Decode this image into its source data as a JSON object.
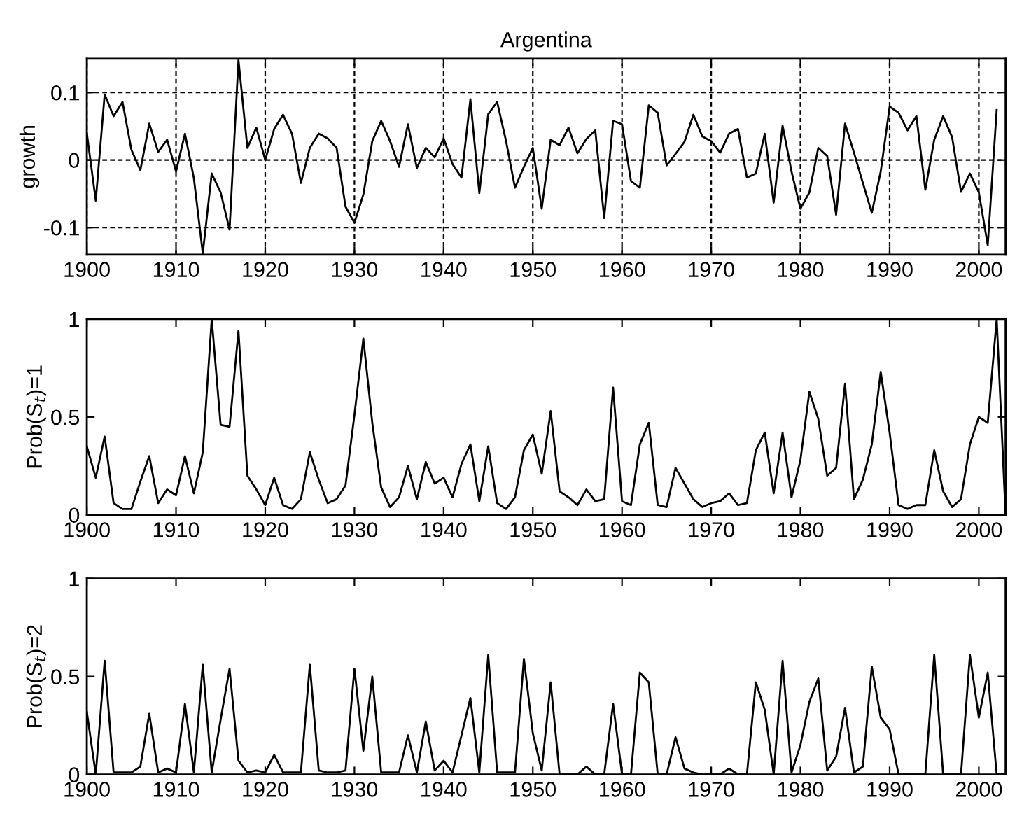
{
  "chart_data": [
    {
      "type": "line",
      "title": "Argentina",
      "ylabel": "growth",
      "xlim": [
        1900,
        2003
      ],
      "ylim": [
        -0.14,
        0.15
      ],
      "xticks": [
        1900,
        1910,
        1920,
        1930,
        1940,
        1950,
        1960,
        1970,
        1980,
        1990,
        2000
      ],
      "yticks": [
        {
          "value": -0.1,
          "label": "-0.1"
        },
        0,
        0.1
      ],
      "grid": true,
      "line_style": "solid",
      "marker": "none",
      "series": [
        {
          "color": "#000000",
          "x": [
            1900,
            1901,
            1902,
            1903,
            1904,
            1905,
            1906,
            1907,
            1908,
            1909,
            1910,
            1911,
            1912,
            1913,
            1914,
            1915,
            1916,
            1917,
            1918,
            1919,
            1920,
            1921,
            1922,
            1923,
            1924,
            1925,
            1926,
            1927,
            1928,
            1929,
            1930,
            1931,
            1932,
            1933,
            1934,
            1935,
            1936,
            1937,
            1938,
            1939,
            1940,
            1941,
            1942,
            1943,
            1944,
            1945,
            1946,
            1947,
            1948,
            1949,
            1950,
            1951,
            1952,
            1953,
            1954,
            1955,
            1956,
            1957,
            1958,
            1959,
            1960,
            1961,
            1962,
            1963,
            1964,
            1965,
            1966,
            1967,
            1968,
            1969,
            1970,
            1971,
            1972,
            1973,
            1974,
            1975,
            1976,
            1977,
            1978,
            1979,
            1980,
            1981,
            1982,
            1983,
            1984,
            1985,
            1986,
            1987,
            1988,
            1989,
            1990,
            1991,
            1992,
            1993,
            1994,
            1995,
            1996,
            1997,
            1998,
            1999,
            2000,
            2001,
            2002
          ],
          "values": [
            0.04,
            -0.06,
            0.097,
            0.065,
            0.086,
            0.015,
            -0.015,
            0.054,
            0.012,
            0.03,
            -0.017,
            0.039,
            -0.027,
            -0.138,
            -0.02,
            -0.048,
            -0.103,
            0.148,
            0.018,
            0.048,
            0.0,
            0.046,
            0.067,
            0.039,
            -0.034,
            0.018,
            0.039,
            0.032,
            0.018,
            -0.069,
            -0.093,
            -0.051,
            0.028,
            0.058,
            0.028,
            -0.01,
            0.053,
            -0.012,
            0.018,
            0.004,
            0.032,
            -0.006,
            -0.026,
            0.09,
            -0.049,
            0.068,
            0.086,
            0.028,
            -0.041,
            -0.01,
            0.018,
            -0.072,
            0.03,
            0.022,
            0.048,
            0.01,
            0.031,
            0.044,
            -0.086,
            0.058,
            0.053,
            -0.031,
            -0.041,
            0.081,
            0.07,
            -0.008,
            0.009,
            0.027,
            0.067,
            0.035,
            0.028,
            0.011,
            0.039,
            0.046,
            -0.026,
            -0.02,
            0.039,
            -0.063,
            0.051,
            -0.017,
            -0.072,
            -0.048,
            0.018,
            0.006,
            -0.081,
            0.054,
            0.011,
            -0.034,
            -0.078,
            -0.017,
            0.079,
            0.07,
            0.044,
            0.065,
            -0.044,
            0.03,
            0.065,
            0.034,
            -0.047,
            -0.02,
            -0.048,
            -0.126,
            0.074
          ]
        }
      ]
    },
    {
      "type": "line",
      "ylabel": "Prob(S$_{t}$)=1",
      "xlim": [
        1900,
        2003
      ],
      "ylim": [
        0,
        1
      ],
      "xticks": [
        1900,
        1910,
        1920,
        1930,
        1940,
        1950,
        1960,
        1970,
        1980,
        1990,
        2000
      ],
      "yticks": [
        0,
        0.5,
        1
      ],
      "grid": false,
      "line_style": "solid",
      "marker": "none",
      "series": [
        {
          "color": "#000000",
          "x": [
            1900,
            1901,
            1902,
            1903,
            1904,
            1905,
            1906,
            1907,
            1908,
            1909,
            1910,
            1911,
            1912,
            1913,
            1914,
            1915,
            1916,
            1917,
            1918,
            1919,
            1920,
            1921,
            1922,
            1923,
            1924,
            1925,
            1926,
            1927,
            1928,
            1929,
            1930,
            1931,
            1932,
            1933,
            1934,
            1935,
            1936,
            1937,
            1938,
            1939,
            1940,
            1941,
            1942,
            1943,
            1944,
            1945,
            1946,
            1947,
            1948,
            1949,
            1950,
            1951,
            1952,
            1953,
            1954,
            1955,
            1956,
            1957,
            1958,
            1959,
            1960,
            1961,
            1962,
            1963,
            1964,
            1965,
            1966,
            1967,
            1968,
            1969,
            1970,
            1971,
            1972,
            1973,
            1974,
            1975,
            1976,
            1977,
            1978,
            1979,
            1980,
            1981,
            1982,
            1983,
            1984,
            1985,
            1986,
            1987,
            1988,
            1989,
            1990,
            1991,
            1992,
            1993,
            1994,
            1995,
            1996,
            1997,
            1998,
            1999,
            2000,
            2001,
            2002,
            2003
          ],
          "values": [
            0.35,
            0.19,
            0.4,
            0.06,
            0.03,
            0.03,
            0.17,
            0.3,
            0.06,
            0.13,
            0.1,
            0.3,
            0.11,
            0.32,
            1.0,
            0.46,
            0.45,
            0.94,
            0.2,
            0.13,
            0.05,
            0.19,
            0.05,
            0.03,
            0.08,
            0.32,
            0.18,
            0.06,
            0.08,
            0.15,
            0.51,
            0.9,
            0.47,
            0.14,
            0.04,
            0.09,
            0.25,
            0.08,
            0.27,
            0.16,
            0.19,
            0.09,
            0.26,
            0.36,
            0.07,
            0.35,
            0.06,
            0.03,
            0.09,
            0.33,
            0.41,
            0.21,
            0.53,
            0.12,
            0.09,
            0.05,
            0.13,
            0.07,
            0.08,
            0.65,
            0.07,
            0.05,
            0.36,
            0.47,
            0.05,
            0.04,
            0.24,
            0.16,
            0.08,
            0.04,
            0.06,
            0.07,
            0.11,
            0.05,
            0.06,
            0.33,
            0.42,
            0.11,
            0.42,
            0.09,
            0.28,
            0.63,
            0.49,
            0.2,
            0.24,
            0.67,
            0.08,
            0.18,
            0.36,
            0.73,
            0.42,
            0.05,
            0.03,
            0.05,
            0.05,
            0.33,
            0.12,
            0.04,
            0.08,
            0.36,
            0.5,
            0.47,
            1.0,
            0.0
          ]
        }
      ]
    },
    {
      "type": "line",
      "ylabel": "Prob(S$_{t}$)=2",
      "xlim": [
        1900,
        2003
      ],
      "ylim": [
        0,
        1
      ],
      "xticks": [
        1900,
        1910,
        1920,
        1930,
        1940,
        1950,
        1960,
        1970,
        1980,
        1990,
        2000
      ],
      "yticks": [
        0,
        0.5,
        1
      ],
      "grid": false,
      "line_style": "solid",
      "marker": "none",
      "series": [
        {
          "color": "#000000",
          "x": [
            1900,
            1901,
            1902,
            1903,
            1904,
            1905,
            1906,
            1907,
            1908,
            1909,
            1910,
            1911,
            1912,
            1913,
            1914,
            1915,
            1916,
            1917,
            1918,
            1919,
            1920,
            1921,
            1922,
            1923,
            1924,
            1925,
            1926,
            1927,
            1928,
            1929,
            1930,
            1931,
            1932,
            1933,
            1934,
            1935,
            1936,
            1937,
            1938,
            1939,
            1940,
            1941,
            1942,
            1943,
            1944,
            1945,
            1946,
            1947,
            1948,
            1949,
            1950,
            1951,
            1952,
            1953,
            1954,
            1955,
            1956,
            1957,
            1958,
            1959,
            1960,
            1961,
            1962,
            1963,
            1964,
            1965,
            1966,
            1967,
            1968,
            1969,
            1970,
            1971,
            1972,
            1973,
            1974,
            1975,
            1976,
            1977,
            1978,
            1979,
            1980,
            1981,
            1982,
            1983,
            1984,
            1985,
            1986,
            1987,
            1988,
            1989,
            1990,
            1991,
            1992,
            1993,
            1994,
            1995,
            1996,
            1997,
            1998,
            1999,
            2000,
            2001,
            2002,
            2003
          ],
          "values": [
            0.32,
            0.0,
            0.58,
            0.01,
            0.01,
            0.01,
            0.04,
            0.31,
            0.01,
            0.03,
            0.01,
            0.36,
            0.01,
            0.56,
            0.01,
            0.28,
            0.54,
            0.07,
            0.01,
            0.02,
            0.01,
            0.1,
            0.01,
            0.01,
            0.01,
            0.56,
            0.02,
            0.01,
            0.01,
            0.02,
            0.54,
            0.12,
            0.5,
            0.01,
            0.01,
            0.01,
            0.2,
            0.01,
            0.27,
            0.02,
            0.07,
            0.01,
            0.2,
            0.39,
            0.01,
            0.61,
            0.01,
            0.01,
            0.01,
            0.59,
            0.21,
            0.02,
            0.47,
            0.0,
            0.0,
            0.0,
            0.04,
            0.0,
            0.0,
            0.36,
            0.0,
            0.0,
            0.52,
            0.47,
            0.0,
            0.0,
            0.19,
            0.03,
            0.01,
            0.0,
            0.0,
            0.0,
            0.03,
            0.0,
            0.0,
            0.47,
            0.33,
            0.0,
            0.58,
            0.01,
            0.15,
            0.37,
            0.49,
            0.02,
            0.09,
            0.34,
            0.01,
            0.04,
            0.55,
            0.29,
            0.23,
            0.0,
            0.0,
            0.0,
            0.0,
            0.61,
            0.0,
            0.0,
            0.0,
            0.61,
            0.29,
            0.52,
            0.0,
            0.0
          ]
        }
      ]
    }
  ]
}
